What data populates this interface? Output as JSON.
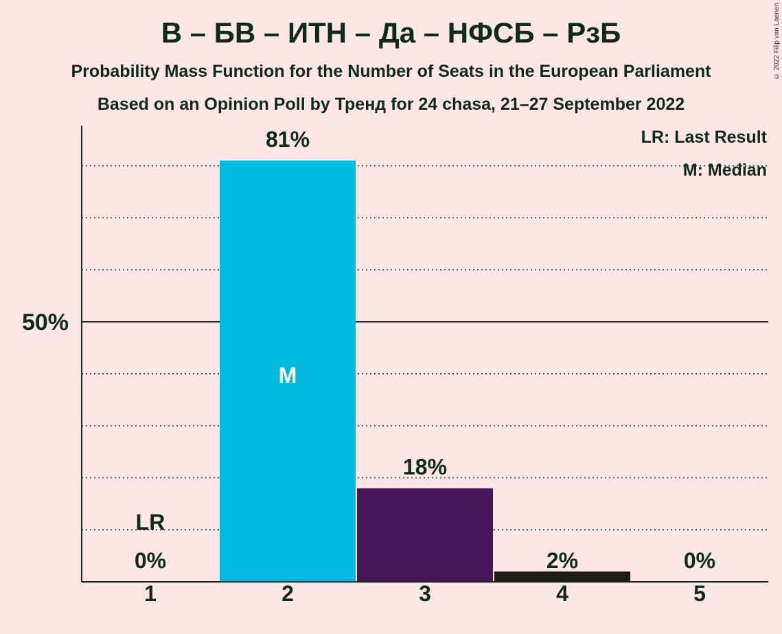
{
  "title": "В – БВ – ИТН – Да – НФСБ – РзБ",
  "subtitle": "Probability Mass Function for the Number of Seats in the European Parliament",
  "subtitle2": "Based on an Opinion Poll by Тренд for 24 chasa, 21–27 September 2022",
  "copyright": "© 2022 Filip van Laenen",
  "legend": {
    "last_result": "LR: Last Result",
    "median": "M: Median"
  },
  "colors": {
    "background": "#fde6e6",
    "text": "#0d2a1f"
  },
  "chart_data": {
    "type": "bar",
    "categories": [
      "1",
      "2",
      "3",
      "4",
      "5"
    ],
    "values": [
      0,
      81,
      18,
      2,
      0
    ],
    "value_labels": [
      "0%",
      "81%",
      "18%",
      "2%",
      "0%"
    ],
    "colors": [
      "#00b9e0",
      "#00b9e0",
      "#471659",
      "#1e1a18",
      "#1e1a18"
    ],
    "ylim": [
      0,
      88
    ],
    "gridlines": [
      10,
      20,
      30,
      40,
      60,
      70,
      80
    ],
    "major_gridline": 50,
    "ytick_label": "50%",
    "last_result": {
      "category": "1",
      "label": "LR"
    },
    "median": {
      "category": "2",
      "label": "M"
    },
    "grid": true,
    "legend_position": "top-right"
  }
}
